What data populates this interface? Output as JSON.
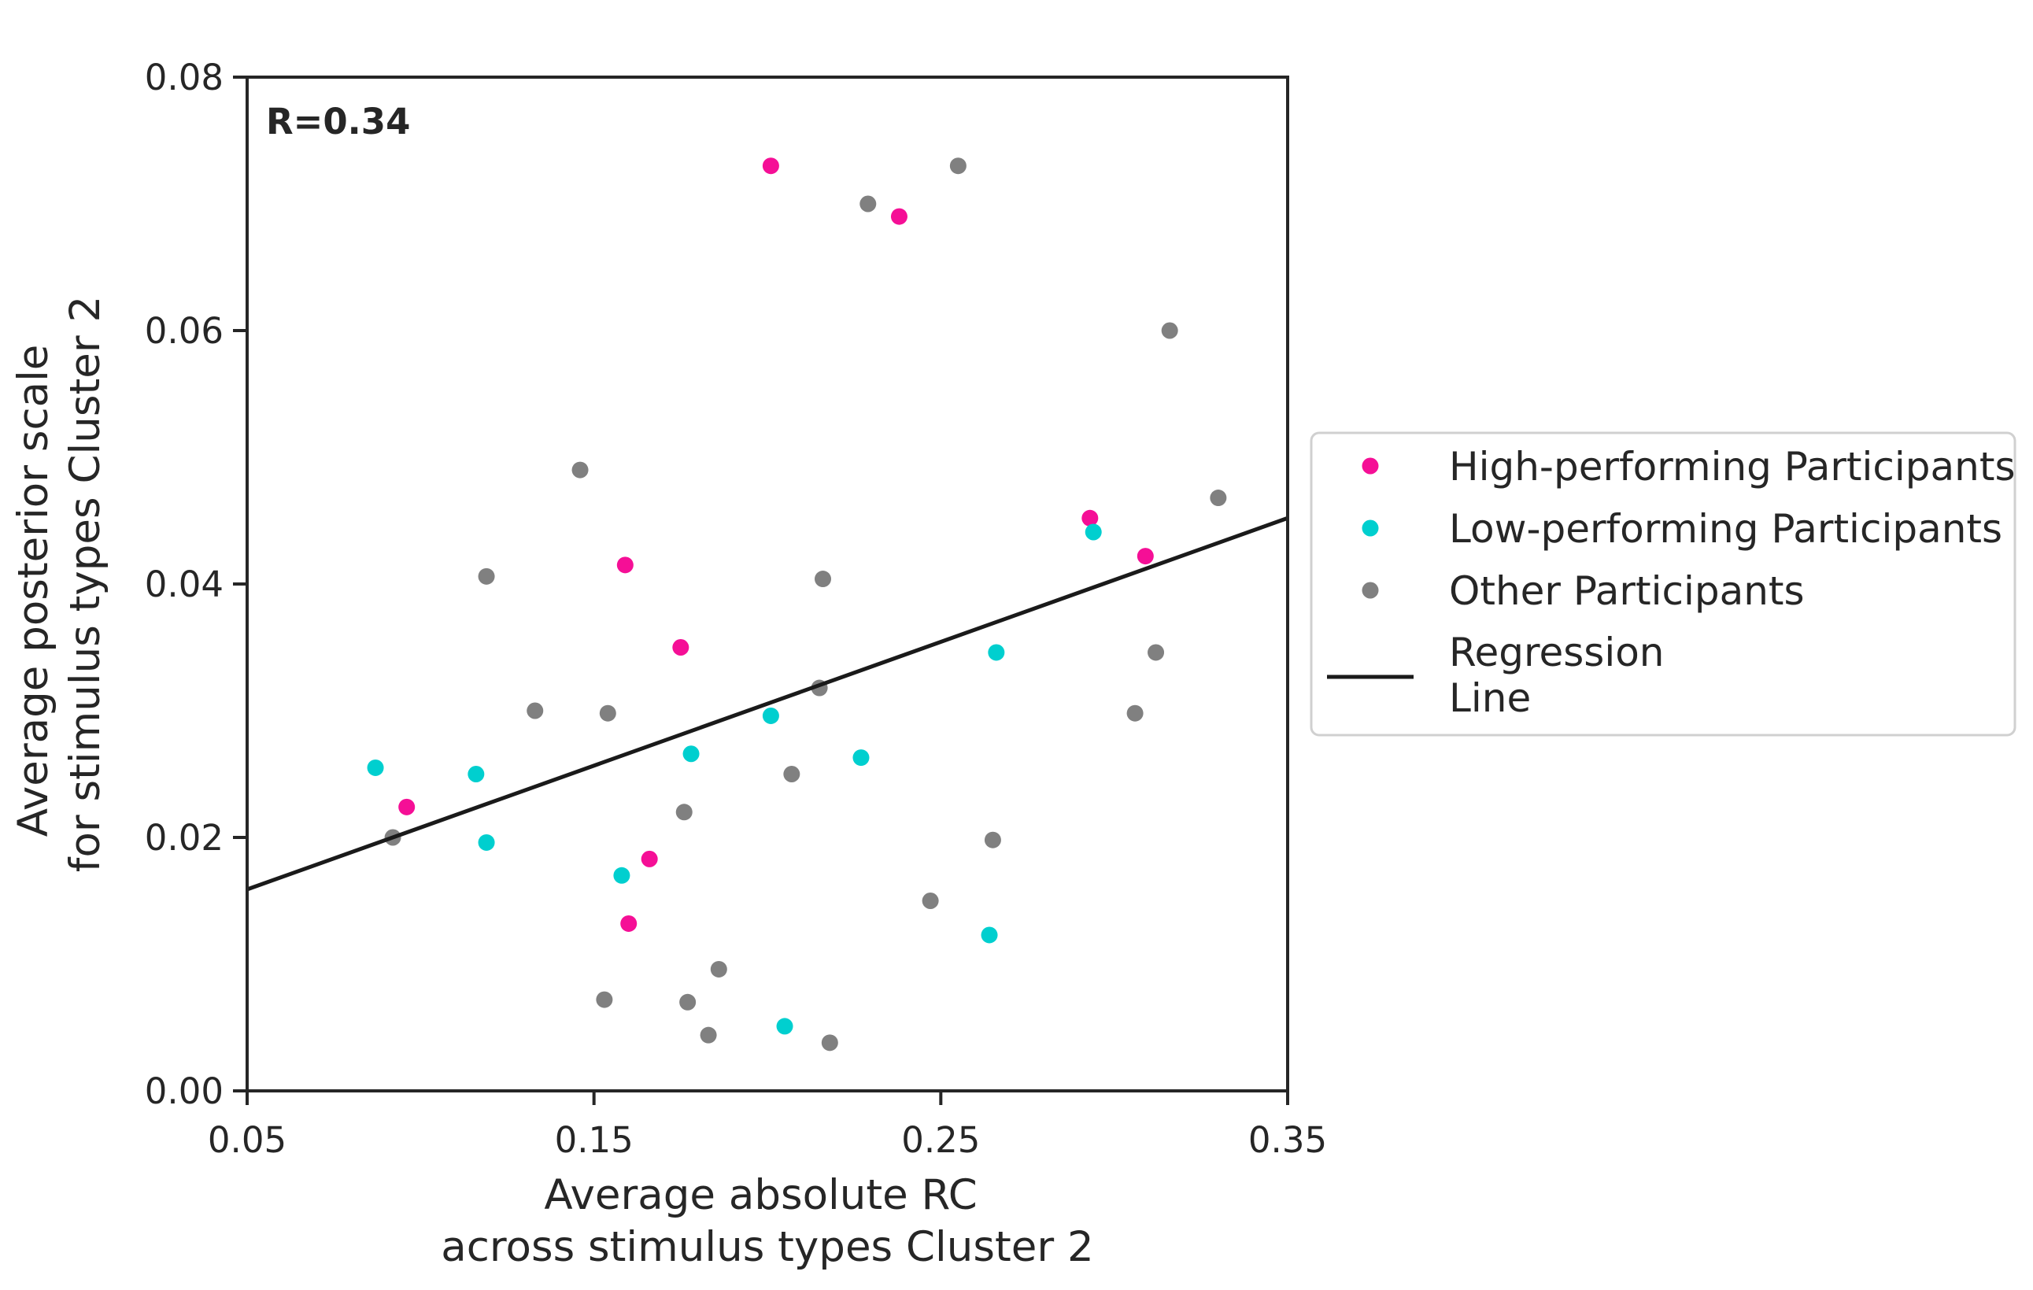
{
  "chart_data": {
    "type": "scatter",
    "title": "",
    "xlabel": [
      "Average absolute RC",
      "across stimulus types Cluster 2"
    ],
    "ylabel": [
      "Average posterior scale",
      "for stimulus types Cluster 2"
    ],
    "xlim": [
      0.05,
      0.35
    ],
    "ylim": [
      0.0,
      0.08
    ],
    "xticks": [
      0.05,
      0.15,
      0.25,
      0.35
    ],
    "xtick_labels": [
      "0.05",
      "0.15",
      "0.25",
      "0.35"
    ],
    "yticks": [
      0.0,
      0.02,
      0.04,
      0.06,
      0.08
    ],
    "ytick_labels": [
      "0.00",
      "0.02",
      "0.04",
      "0.06",
      "0.08"
    ],
    "grid": false,
    "annotation": "R=0.34",
    "legend_position": "right-outside",
    "series": [
      {
        "name": "High-performing Participants",
        "color": "#f50f96",
        "points": [
          [
            0.201,
            0.073
          ],
          [
            0.238,
            0.069
          ],
          [
            0.293,
            0.0452
          ],
          [
            0.309,
            0.0422
          ],
          [
            0.159,
            0.0415
          ],
          [
            0.175,
            0.035
          ],
          [
            0.096,
            0.0224
          ],
          [
            0.166,
            0.0183
          ],
          [
            0.16,
            0.0132
          ]
        ]
      },
      {
        "name": "Low-performing Participants",
        "color": "#00cfcf",
        "points": [
          [
            0.294,
            0.0441
          ],
          [
            0.266,
            0.0346
          ],
          [
            0.201,
            0.0296
          ],
          [
            0.178,
            0.0266
          ],
          [
            0.227,
            0.0263
          ],
          [
            0.087,
            0.0255
          ],
          [
            0.116,
            0.025
          ],
          [
            0.119,
            0.0196
          ],
          [
            0.158,
            0.017
          ],
          [
            0.264,
            0.0123
          ],
          [
            0.205,
            0.0051
          ]
        ]
      },
      {
        "name": "Other Participants",
        "color": "#808080",
        "points": [
          [
            0.255,
            0.073
          ],
          [
            0.229,
            0.07
          ],
          [
            0.316,
            0.06
          ],
          [
            0.33,
            0.0468
          ],
          [
            0.146,
            0.049
          ],
          [
            0.119,
            0.0406
          ],
          [
            0.216,
            0.0404
          ],
          [
            0.312,
            0.0346
          ],
          [
            0.133,
            0.03
          ],
          [
            0.154,
            0.0298
          ],
          [
            0.215,
            0.0318
          ],
          [
            0.306,
            0.0298
          ],
          [
            0.207,
            0.025
          ],
          [
            0.176,
            0.022
          ],
          [
            0.265,
            0.0198
          ],
          [
            0.092,
            0.02
          ],
          [
            0.247,
            0.015
          ],
          [
            0.186,
            0.0096
          ],
          [
            0.153,
            0.0072
          ],
          [
            0.177,
            0.007
          ],
          [
            0.183,
            0.0044
          ],
          [
            0.218,
            0.0038
          ]
        ]
      }
    ],
    "regression": {
      "name": [
        "Regression",
        "Line"
      ],
      "color": "#1a1a1a",
      "x": [
        0.05,
        0.35
      ],
      "y": [
        0.0159,
        0.0452
      ]
    }
  }
}
